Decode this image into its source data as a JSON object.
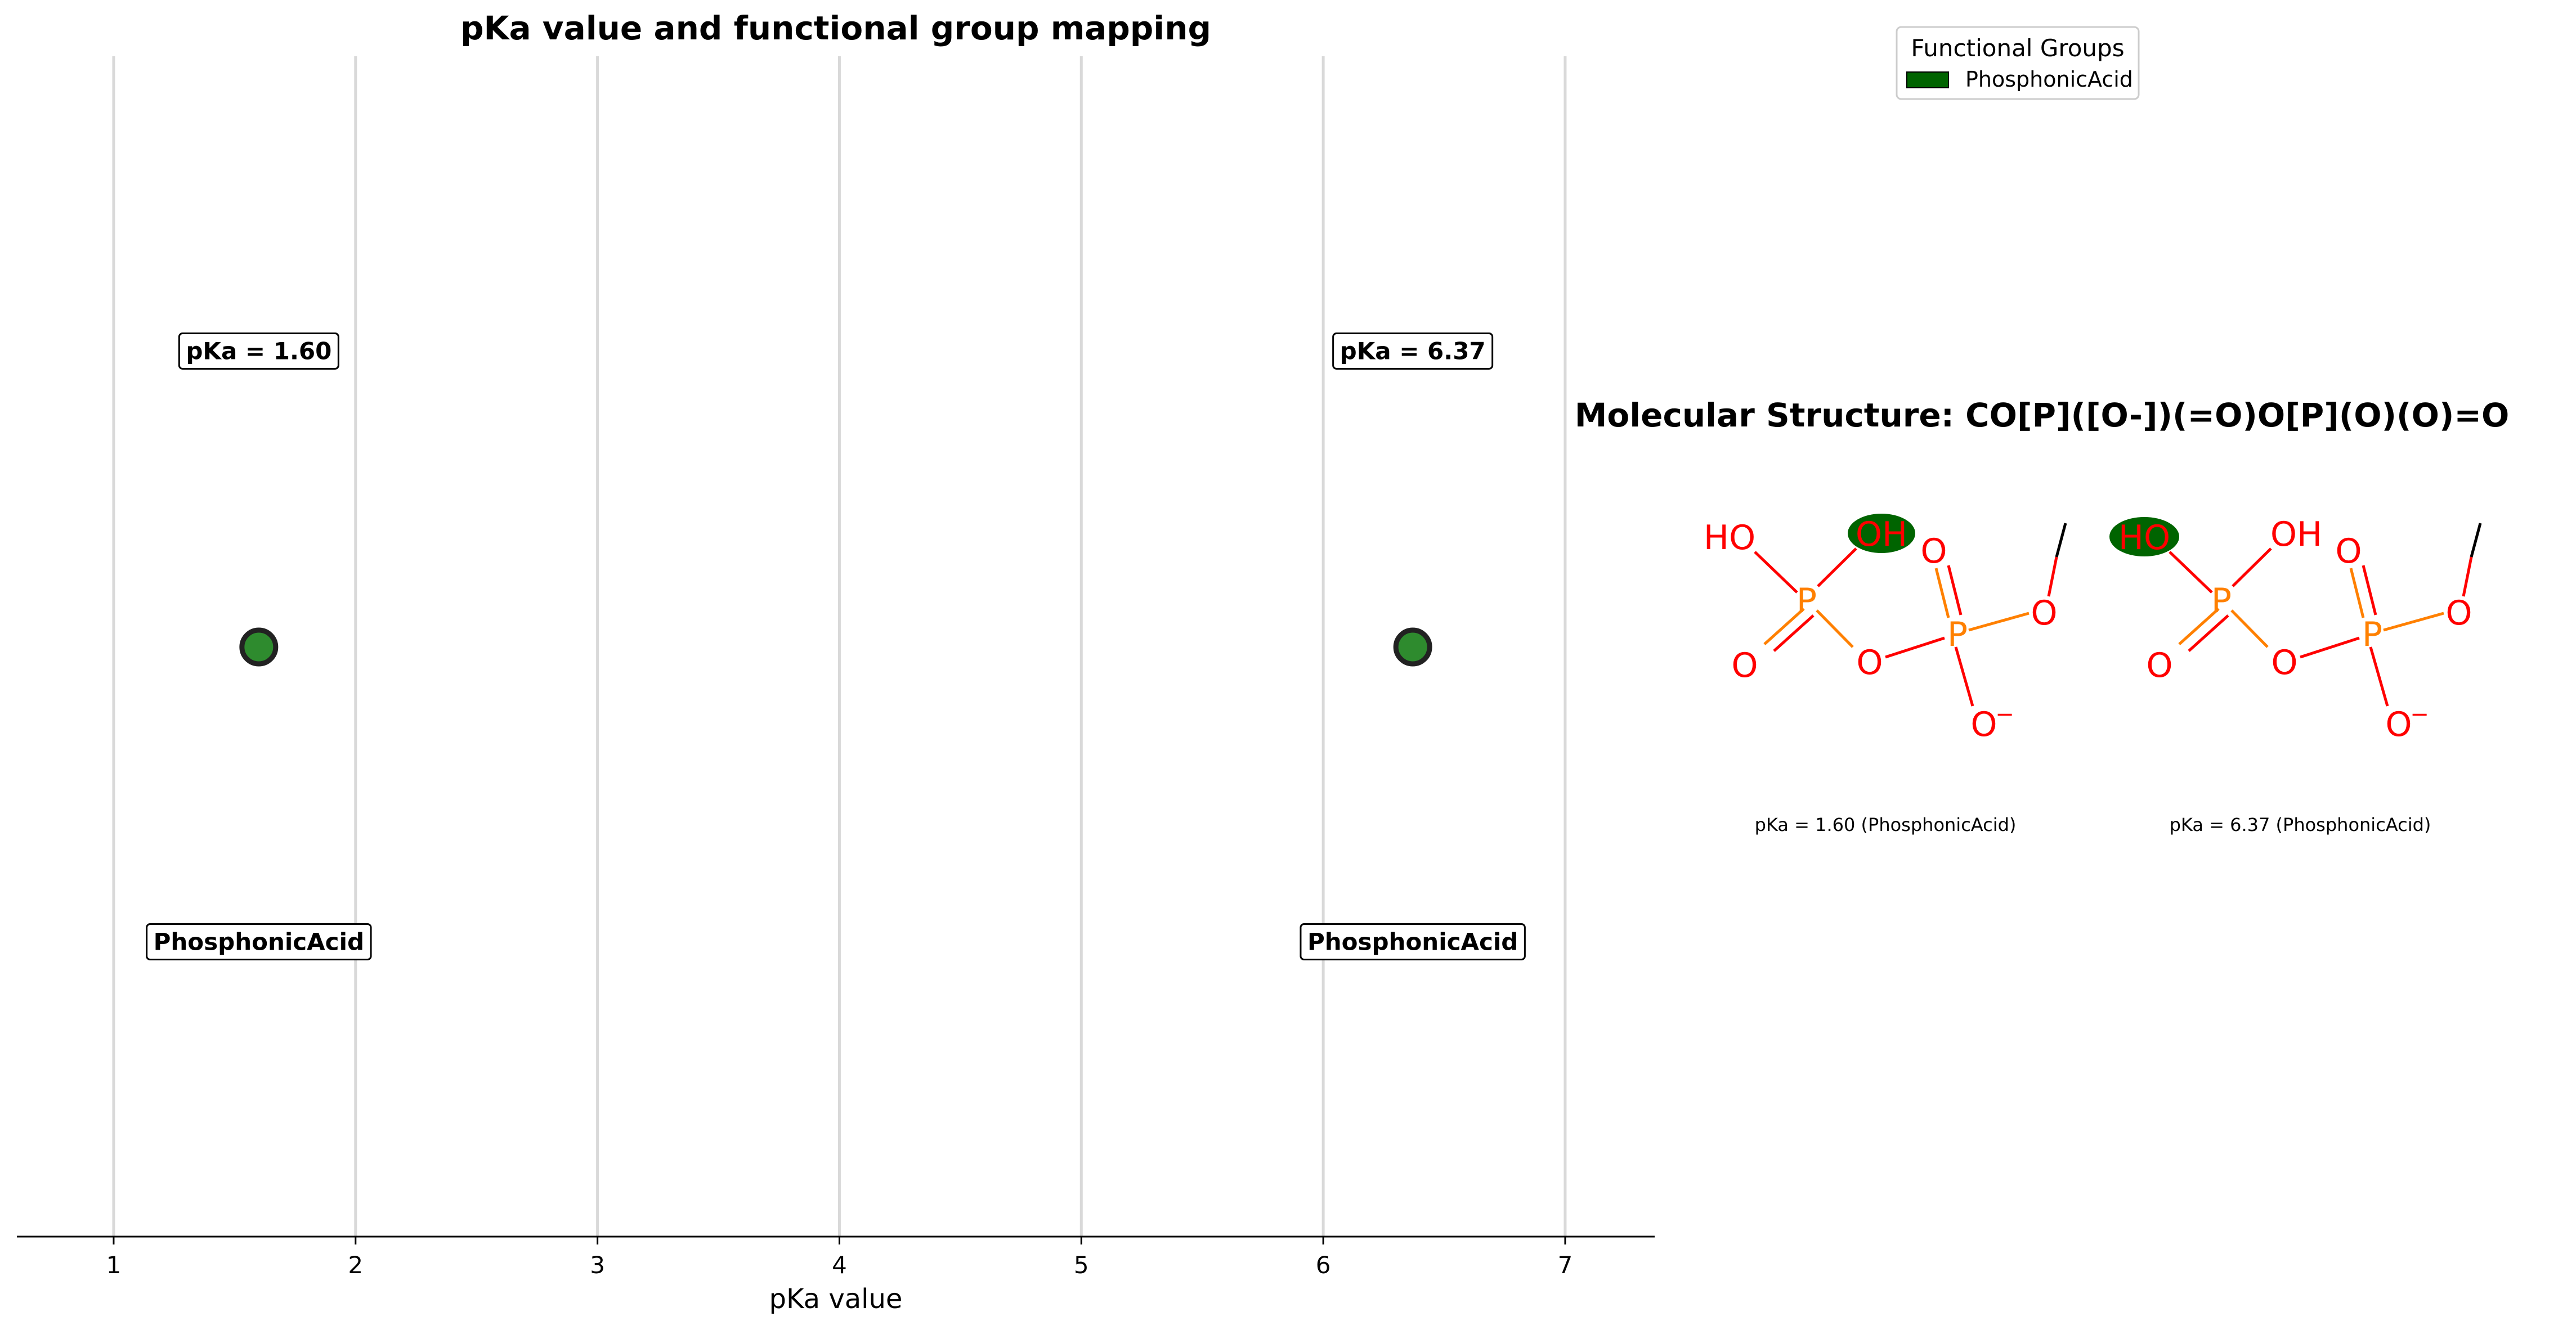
{
  "chart_data": {
    "type": "scatter",
    "title": "pKa value and functional group mapping",
    "xlabel": "pKa value",
    "ylabel": "",
    "xlim": [
      0.6,
      7.37
    ],
    "xticks": [
      1,
      2,
      3,
      4,
      5,
      6,
      7
    ],
    "grid": "vertical",
    "points": [
      {
        "x": 1.6,
        "pka_label": "pKa = 1.60",
        "group": "PhosphonicAcid"
      },
      {
        "x": 6.37,
        "pka_label": "pKa = 6.37",
        "group": "PhosphonicAcid"
      }
    ],
    "legend": {
      "title": "Functional Groups",
      "placement": "top-right",
      "entries": [
        {
          "label": "PhosphonicAcid",
          "color": "#006400"
        }
      ]
    },
    "point_color": "#2e8b2e",
    "point_edge_color": "#222222"
  },
  "structure": {
    "title": "Molecular Structure: CO[P]([O-])(=O)O[P](O)(O)=O",
    "panels": [
      {
        "caption": "pKa = 1.60 (PhosphonicAcid)",
        "highlight": "OH"
      },
      {
        "caption": "pKa = 6.37 (PhosphonicAcid)",
        "highlight": "HO"
      }
    ],
    "atoms": {
      "ho": "HO",
      "oh": "OH",
      "o": "O",
      "p": "P",
      "o_minus": "O",
      "minus": "−"
    },
    "colors": {
      "oxygen": "#ff0000",
      "phosphorus": "#ff8000",
      "highlight": "#006400",
      "carbon_bond": "#000000"
    }
  }
}
